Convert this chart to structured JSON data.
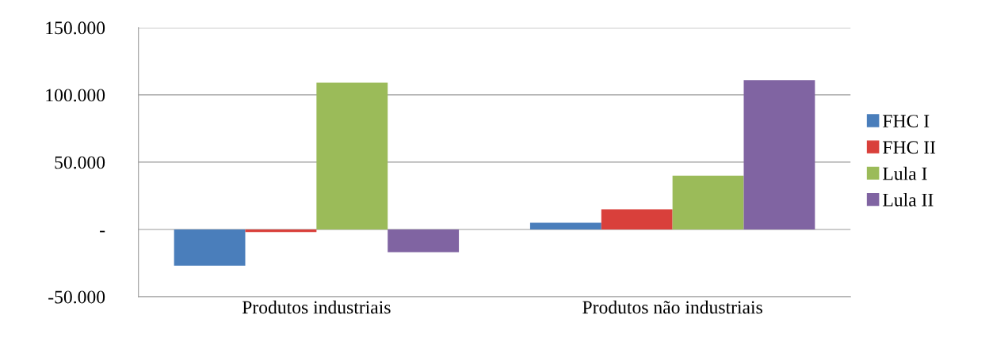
{
  "chart_data": {
    "type": "bar",
    "categories": [
      "Produtos industriais",
      "Produtos não industriais"
    ],
    "series": [
      {
        "name": "FHC I",
        "color": "#4a7ebb",
        "values": [
          -27000,
          5000
        ]
      },
      {
        "name": "FHC II",
        "color": "#d9403b",
        "values": [
          -2000,
          15000
        ]
      },
      {
        "name": "Lula I",
        "color": "#9bbb59",
        "values": [
          109000,
          40000
        ]
      },
      {
        "name": "Lula II",
        "color": "#8064a2",
        "values": [
          -17000,
          111000
        ]
      }
    ],
    "ylim": [
      -50000,
      150000
    ],
    "yticks": [
      {
        "value": -50000,
        "label": "-50.000"
      },
      {
        "value": 0,
        "label": "-"
      },
      {
        "value": 50000,
        "label": "50.000"
      },
      {
        "value": 100000,
        "label": "100.000"
      },
      {
        "value": 150000,
        "label": "150.000"
      }
    ],
    "grid": "y",
    "legend": "right"
  }
}
